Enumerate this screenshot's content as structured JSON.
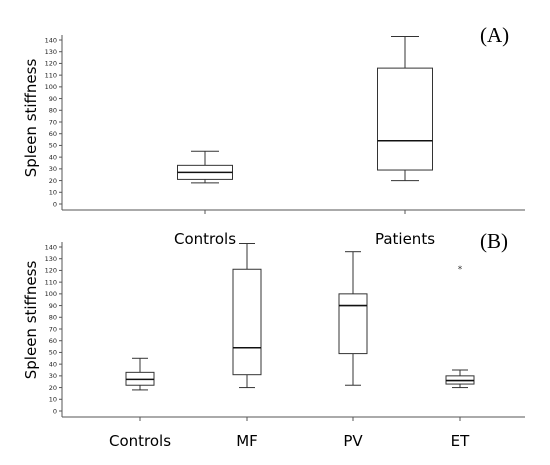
{
  "chart_data": [
    {
      "type": "box",
      "panel_label": "(A)",
      "ylabel": "Spleen stiffness",
      "ylim": [
        0,
        140
      ],
      "yticks": [
        0,
        10,
        20,
        30,
        40,
        50,
        60,
        70,
        80,
        90,
        100,
        110,
        120,
        130,
        140
      ],
      "grid": false,
      "categories": [
        "Controls",
        "Patients"
      ],
      "boxes": [
        {
          "name": "Controls",
          "min": 18,
          "q1": 21,
          "median": 27,
          "q3": 33,
          "max": 45,
          "outliers": []
        },
        {
          "name": "Patients",
          "min": 20,
          "q1": 29,
          "median": 54,
          "q3": 116,
          "max": 143,
          "outliers": []
        }
      ]
    },
    {
      "type": "box",
      "panel_label": "(B)",
      "ylabel": "Spleen stiffness",
      "ylim": [
        0,
        140
      ],
      "yticks": [
        0,
        10,
        20,
        30,
        40,
        50,
        60,
        70,
        80,
        90,
        100,
        110,
        120,
        130,
        140
      ],
      "grid": false,
      "categories": [
        "Controls",
        "MF",
        "PV",
        "ET"
      ],
      "boxes": [
        {
          "name": "Controls",
          "min": 18,
          "q1": 22,
          "median": 27,
          "q3": 33,
          "max": 45,
          "outliers": []
        },
        {
          "name": "MF",
          "min": 20,
          "q1": 31,
          "median": 54,
          "q3": 121,
          "max": 143,
          "outliers": []
        },
        {
          "name": "PV",
          "min": 22,
          "q1": 49,
          "median": 90,
          "q3": 100,
          "max": 136,
          "outliers": []
        },
        {
          "name": "ET",
          "min": 20,
          "q1": 23,
          "median": 26,
          "q3": 30,
          "max": 35,
          "outliers": [
            122
          ]
        }
      ],
      "outlier_marker": "*"
    }
  ]
}
